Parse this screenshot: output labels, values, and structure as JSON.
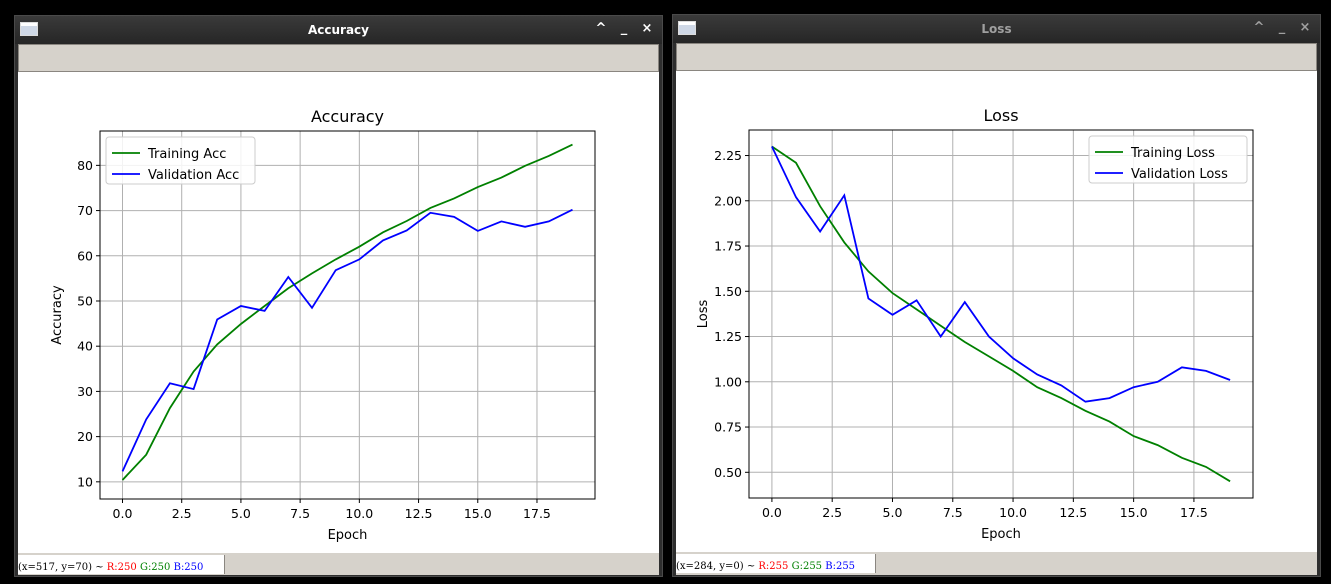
{
  "windows": {
    "accuracy": {
      "title": "Accuracy",
      "status": {
        "coords": "(x=517, y=70) ~ ",
        "r": "R:250",
        "g": "G:250",
        "b": "B:250"
      }
    },
    "loss": {
      "title": "Loss",
      "status": {
        "coords": "(x=284, y=0) ~ ",
        "r": "R:255",
        "g": "G:255",
        "b": "B:255"
      }
    }
  },
  "window_buttons": {
    "up": "^",
    "minimize": "_",
    "close": "×"
  },
  "chart_data": [
    {
      "type": "line",
      "title": "Accuracy",
      "xlabel": "Epoch",
      "ylabel": "Accuracy",
      "xlim": [
        -0.95,
        19.95
      ],
      "ylim": [
        6.2,
        87.6
      ],
      "xticks": [
        "0.0",
        "2.5",
        "5.0",
        "7.5",
        "10.0",
        "12.5",
        "15.0",
        "17.5"
      ],
      "xtick_values": [
        0,
        2.5,
        5,
        7.5,
        10,
        12.5,
        15,
        17.5
      ],
      "yticks": [
        "10",
        "20",
        "30",
        "40",
        "50",
        "60",
        "70",
        "80"
      ],
      "ytick_values": [
        10,
        20,
        30,
        40,
        50,
        60,
        70,
        80
      ],
      "grid": true,
      "legend_position": "upper-left",
      "x": [
        0,
        1,
        2,
        3,
        4,
        5,
        6,
        7,
        8,
        9,
        10,
        11,
        12,
        13,
        14,
        15,
        16,
        17,
        18,
        19
      ],
      "series": [
        {
          "name": "Training Acc",
          "color": "#008000",
          "values": [
            10.4,
            16.0,
            26.3,
            34.4,
            40.4,
            44.9,
            48.9,
            52.8,
            56.1,
            59.2,
            62.0,
            65.2,
            67.7,
            70.6,
            72.7,
            75.2,
            77.3,
            79.9,
            82.1,
            84.6
          ]
        },
        {
          "name": "Validation Acc",
          "color": "#0000ff",
          "values": [
            12.3,
            23.8,
            31.8,
            30.5,
            45.9,
            48.9,
            47.8,
            55.3,
            48.5,
            56.8,
            59.2,
            63.4,
            65.6,
            69.5,
            68.6,
            65.5,
            67.6,
            66.4,
            67.6,
            70.2
          ]
        }
      ]
    },
    {
      "type": "line",
      "title": "Loss",
      "xlabel": "Epoch",
      "ylabel": "Loss",
      "xlim": [
        -0.95,
        19.95
      ],
      "ylim": [
        0.358,
        2.391
      ],
      "xticks": [
        "0.0",
        "2.5",
        "5.0",
        "7.5",
        "10.0",
        "12.5",
        "15.0",
        "17.5"
      ],
      "xtick_values": [
        0,
        2.5,
        5,
        7.5,
        10,
        12.5,
        15,
        17.5
      ],
      "yticks": [
        "0.50",
        "0.75",
        "1.00",
        "1.25",
        "1.50",
        "1.75",
        "2.00",
        "2.25"
      ],
      "ytick_values": [
        0.5,
        0.75,
        1.0,
        1.25,
        1.5,
        1.75,
        2.0,
        2.25
      ],
      "grid": true,
      "legend_position": "upper-right",
      "x": [
        0,
        1,
        2,
        3,
        4,
        5,
        6,
        7,
        8,
        9,
        10,
        11,
        12,
        13,
        14,
        15,
        16,
        17,
        18,
        19
      ],
      "series": [
        {
          "name": "Training Loss",
          "color": "#008000",
          "values": [
            2.3,
            2.21,
            1.97,
            1.77,
            1.61,
            1.49,
            1.4,
            1.31,
            1.22,
            1.14,
            1.06,
            0.97,
            0.91,
            0.84,
            0.78,
            0.7,
            0.65,
            0.58,
            0.53,
            0.45
          ]
        },
        {
          "name": "Validation Loss",
          "color": "#0000ff",
          "values": [
            2.3,
            2.02,
            1.83,
            2.03,
            1.46,
            1.37,
            1.45,
            1.25,
            1.44,
            1.25,
            1.13,
            1.04,
            0.98,
            0.89,
            0.91,
            0.97,
            1.0,
            1.08,
            1.06,
            1.01
          ]
        }
      ]
    }
  ]
}
